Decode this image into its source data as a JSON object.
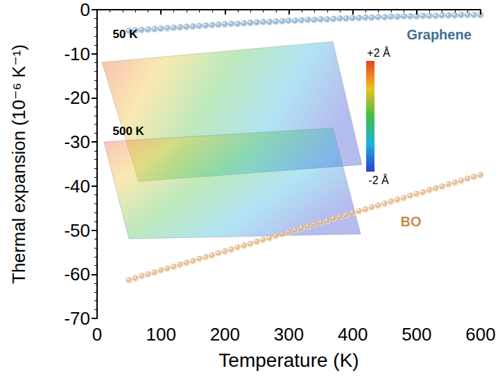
{
  "chart_data": {
    "type": "scatter",
    "x_label": "Temperature (K)",
    "y_label": "Thermal expansion (10⁻⁶ K⁻¹)",
    "xlim": [
      0,
      600
    ],
    "xticks": [
      0,
      100,
      200,
      300,
      400,
      500,
      600
    ],
    "ylim": [
      -70,
      0
    ],
    "yticks": [
      -70,
      -60,
      -50,
      -40,
      -30,
      -20,
      -10,
      0
    ],
    "grid": false,
    "marker": "circle",
    "x": [
      50,
      60,
      70,
      80,
      90,
      100,
      110,
      120,
      130,
      140,
      150,
      160,
      170,
      180,
      190,
      200,
      210,
      220,
      230,
      240,
      250,
      260,
      270,
      280,
      290,
      300,
      310,
      320,
      330,
      340,
      350,
      360,
      370,
      380,
      390,
      400,
      410,
      420,
      430,
      440,
      450,
      460,
      470,
      480,
      490,
      500,
      510,
      520,
      530,
      540,
      550,
      560,
      570,
      580,
      590,
      600
    ],
    "series": [
      {
        "name": "Graphene",
        "color": "#7f9db5",
        "values": [
          -4.8,
          -4.7,
          -4.6,
          -4.5,
          -4.4,
          -4.3,
          -4.2,
          -4.1,
          -4.0,
          -3.9,
          -3.8,
          -3.7,
          -3.6,
          -3.5,
          -3.4,
          -3.3,
          -3.2,
          -3.2,
          -3.1,
          -3.0,
          -2.9,
          -2.8,
          -2.8,
          -2.7,
          -2.6,
          -2.5,
          -2.5,
          -2.4,
          -2.3,
          -2.3,
          -2.2,
          -2.2,
          -2.1,
          -2.0,
          -2.0,
          -1.9,
          -1.9,
          -1.8,
          -1.8,
          -1.7,
          -1.7,
          -1.6,
          -1.6,
          -1.5,
          -1.5,
          -1.5,
          -1.4,
          -1.4,
          -1.4,
          -1.3,
          -1.3,
          -1.3,
          -1.2,
          -1.2,
          -1.2,
          -1.2
        ]
      },
      {
        "name": "BO",
        "color": "#cfa47f",
        "values": [
          -61.3,
          -60.9,
          -60.4,
          -60.0,
          -59.6,
          -59.1,
          -58.7,
          -58.3,
          -57.8,
          -57.4,
          -57.0,
          -56.5,
          -56.1,
          -55.7,
          -55.2,
          -54.8,
          -54.4,
          -53.9,
          -53.5,
          -53.1,
          -52.6,
          -52.2,
          -51.8,
          -51.3,
          -50.9,
          -50.5,
          -50.0,
          -49.6,
          -49.2,
          -48.7,
          -48.3,
          -47.9,
          -47.4,
          -47.0,
          -46.6,
          -46.1,
          -45.7,
          -45.3,
          -44.8,
          -44.4,
          -44.0,
          -43.5,
          -43.1,
          -42.7,
          -42.2,
          -41.8,
          -41.4,
          -40.9,
          -40.5,
          -40.1,
          -39.6,
          -39.2,
          -38.8,
          -38.3,
          -37.9,
          -37.5
        ]
      }
    ],
    "annotations": [
      {
        "text": "Graphene",
        "x": 535,
        "y": -5.7,
        "color": "#3f6f95"
      },
      {
        "text": "BO",
        "x": 491,
        "y": -48.1,
        "color": "#c98a50"
      },
      {
        "text": "50 K",
        "x": 44,
        "y": -5.6,
        "color": "#000000"
      },
      {
        "text": "500 K",
        "x": 49,
        "y": -27.5,
        "color": "#000000"
      }
    ],
    "colorbar": {
      "range": [
        -2,
        2
      ],
      "ticks": [
        {
          "value": 2,
          "label": "+2 Å"
        },
        {
          "value": -2,
          "label": "-2 Å"
        }
      ]
    }
  }
}
